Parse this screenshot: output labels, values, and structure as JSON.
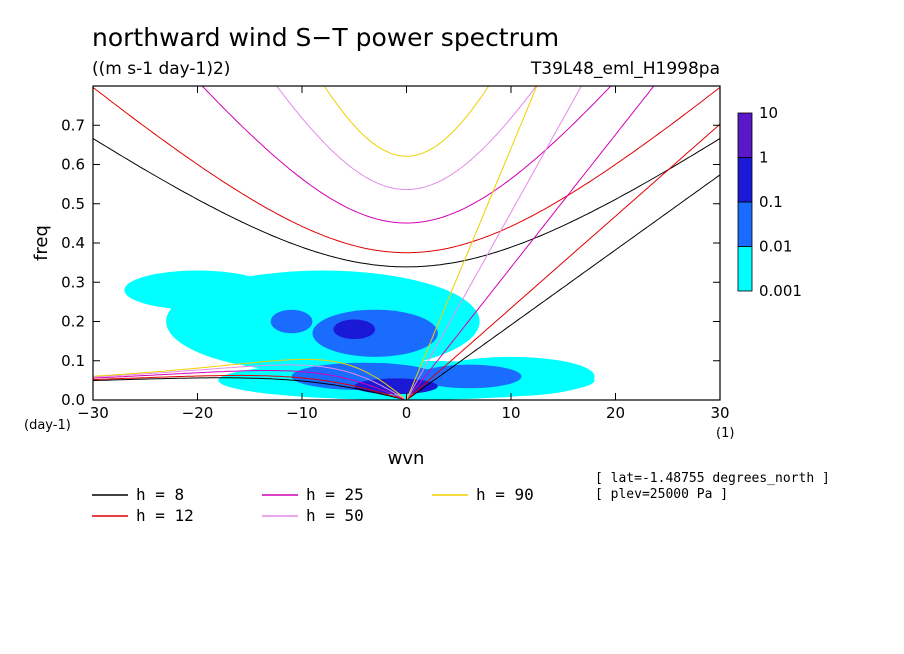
{
  "chart_data": {
    "type": "heatmap",
    "title": "northward wind S−T power spectrum",
    "units": "((m s-1 day-1)2)",
    "run_label": "T39L48_eml_H1998pa",
    "xlabel": "wvn",
    "ylabel": "freq",
    "x_unit": "(1)",
    "y_unit": "(day-1)",
    "xlim": [
      -30,
      30
    ],
    "ylim": [
      0,
      0.8
    ],
    "x_ticks": [
      -30,
      -20,
      -10,
      0,
      10,
      20,
      30
    ],
    "x_tick_labels": [
      "−30",
      "−20",
      "−10",
      "0",
      "10",
      "20",
      "30"
    ],
    "y_ticks": [
      0.0,
      0.1,
      0.2,
      0.3,
      0.4,
      0.5,
      0.6,
      0.7
    ],
    "y_tick_labels": [
      "0.0",
      "0.1",
      "0.2",
      "0.3",
      "0.4",
      "0.5",
      "0.6",
      "0.7"
    ],
    "colorbar": {
      "levels": [
        0.001,
        0.01,
        0.1,
        1,
        10
      ],
      "labels": [
        "0.001",
        "0.01",
        "0.1",
        "1",
        "10"
      ],
      "colors": [
        "#00ffff",
        "#1a6cff",
        "#1a1ad6",
        "#5a18c8"
      ]
    },
    "contour_regions": [
      {
        "level": 0.001,
        "cx": -8,
        "cy": 0.2,
        "rx": 15,
        "ry": 0.13
      },
      {
        "level": 0.001,
        "cx": -20,
        "cy": 0.28,
        "rx": 7,
        "ry": 0.05
      },
      {
        "level": 0.001,
        "cx": 10,
        "cy": 0.06,
        "rx": 8,
        "ry": 0.05
      },
      {
        "level": 0.001,
        "cx": 0,
        "cy": 0.05,
        "rx": 18,
        "ry": 0.05
      },
      {
        "level": 0.01,
        "cx": -3,
        "cy": 0.17,
        "rx": 6,
        "ry": 0.06
      },
      {
        "level": 0.01,
        "cx": -11,
        "cy": 0.2,
        "rx": 2,
        "ry": 0.03
      },
      {
        "level": 0.01,
        "cx": 6,
        "cy": 0.06,
        "rx": 5,
        "ry": 0.03
      },
      {
        "level": 0.01,
        "cx": -4,
        "cy": 0.06,
        "rx": 7,
        "ry": 0.035
      },
      {
        "level": 0.1,
        "cx": -1,
        "cy": 0.035,
        "rx": 4,
        "ry": 0.02
      },
      {
        "level": 0.1,
        "cx": -5,
        "cy": 0.18,
        "rx": 2,
        "ry": 0.025
      }
    ],
    "series": [
      {
        "name": "h = 8",
        "equivalent_depth": 8,
        "color": "#000000"
      },
      {
        "name": "h = 12",
        "equivalent_depth": 12,
        "color": "#e00000"
      },
      {
        "name": "h = 25",
        "equivalent_depth": 25,
        "color": "#d400b4"
      },
      {
        "name": "h = 50",
        "equivalent_depth": 50,
        "color": "#e28ce8"
      },
      {
        "name": "h = 90",
        "equivalent_depth": 90,
        "color": "#f0d000"
      }
    ],
    "annotations": [
      "[ lat=-1.48755 degrees_north ]",
      "[ plev=25000 Pa ]"
    ]
  }
}
